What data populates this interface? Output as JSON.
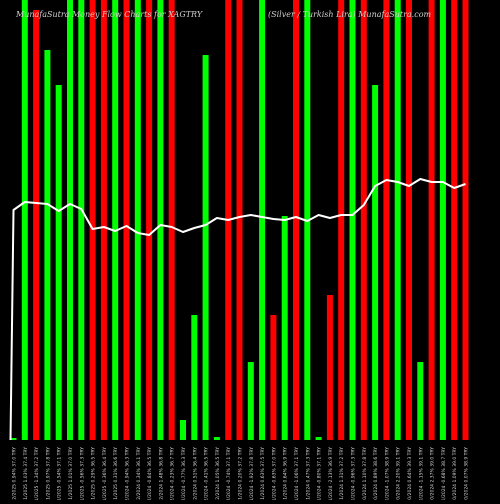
{
  "chart_data": {
    "type": "bar",
    "title_left": "MunafaSutra  Money Flow  Charts for XAGTRY",
    "title_right": "(Silver / Turkish Lira)  MunafaSutra.com",
    "categories": [
      "05/02/2025 0.94% 37.0 TRY",
      "27/01/2025 1.03% 37.4 TRY",
      "22/01/2025 -1.34% 37.2 TRY",
      "17/01/2025 0.97% 37.8 TRY",
      "15/01/2025 -0.54% 37.1 TRY",
      "13/01/2025 1.01% 37.0 TRY",
      "09/01/2025 -0.56% 37.3 TRY",
      "07/01/2025 0.29% 36.5 TRY",
      "03/01/2025 -0.36% 36.4 TRY",
      "01/01/2025 0.31% 36.6 TRY",
      "30/12/2024 -0.94% 36.3 TRY",
      "25/12/2024 0.34% 36.1 TRY",
      "20/12/2024 -0.84% 36.5 TRY",
      "18/12/2024 1.48% 36.8 TRY",
      "16/12/2024 -0.23% 36.7 TRY",
      "12/12/2024 -0.77% 36.3 TRY",
      "10/12/2024 0.51% 36.4 TRY",
      "06/12/2024 -0.41% 36.5 TRY",
      "04/12/2024 1.05% 36.5 TRY",
      "02/12/2024 -0.74% 37.1 TRY",
      "28/11/2024 0.20% 37.2 TRY",
      "26/11/2024 -1.92% 37.8 TRY",
      "22/11/2024 0.63% 37.5 TRY",
      "20/11/2024 -0.63% 37.0 TRY",
      "18/11/2024 0.64% 36.9 TRY",
      "14/11/2024 -1.06% 37.1 TRY",
      "12/11/2024 0.47% 37.3 TRY",
      "08/11/2024 -0.80% 37.1 TRY",
      "06/11/2024 -2.13% 36.9 TRY",
      "04/11/2024 1.31% 37.2 TRY",
      "31/10/2024 -0.96% 37.3 TRY",
      "29/10/2024 1.10% 37.8 TRY",
      "25/10/2024 0.89% 38.6 TRY",
      "23/10/2024 -1.07% 38.9 TRY",
      "21/10/2024 2.20% 39.1 TRY",
      "17/10/2024 0.64% 39.3 TRY",
      "15/10/2024 -1.15% 39.1 TRY",
      "11/10/2024 2.37% 39.0 TRY",
      "09/10/2024 -0.68% 38.7 TRY",
      "07/10/2024 1.09% 39.0 TRY",
      "03/10/2024 0.07% 38.9 TRY"
    ],
    "series": [
      {
        "values": [
          2,
          440,
          430,
          390,
          355,
          440,
          440,
          440,
          440,
          440,
          440,
          440,
          440,
          440,
          440,
          20,
          125,
          385,
          3,
          440,
          440,
          78,
          440,
          125,
          224,
          440,
          440,
          3,
          145,
          440,
          440,
          440,
          355,
          440,
          440,
          440,
          78,
          440,
          440,
          440,
          440
        ],
        "colors": [
          "green",
          "green",
          "red",
          "green",
          "green",
          "green",
          "green",
          "red",
          "red",
          "green",
          "red",
          "green",
          "red",
          "green",
          "red",
          "green",
          "green",
          "green",
          "green",
          "red",
          "red",
          "green",
          "green",
          "red",
          "green",
          "red",
          "green",
          "green",
          "red",
          "red",
          "green",
          "red",
          "green",
          "red",
          "green",
          "red",
          "green",
          "red",
          "green",
          "red",
          "red"
        ]
      }
    ],
    "line": [
      230,
      238,
      237,
      236,
      229,
      236,
      231,
      211,
      213,
      209,
      214,
      207,
      205,
      215,
      213,
      208,
      212,
      215,
      222,
      220,
      223,
      225,
      223,
      221,
      220,
      223,
      219,
      225,
      222,
      225,
      225,
      235,
      254,
      260,
      258,
      254,
      261,
      258,
      258,
      252,
      256
    ],
    "ylim": [
      0,
      440
    ],
    "grid": false,
    "colors": {
      "green": "#00ff00",
      "red": "#ff0000",
      "line": "#ffffff",
      "background": "#000000"
    }
  }
}
